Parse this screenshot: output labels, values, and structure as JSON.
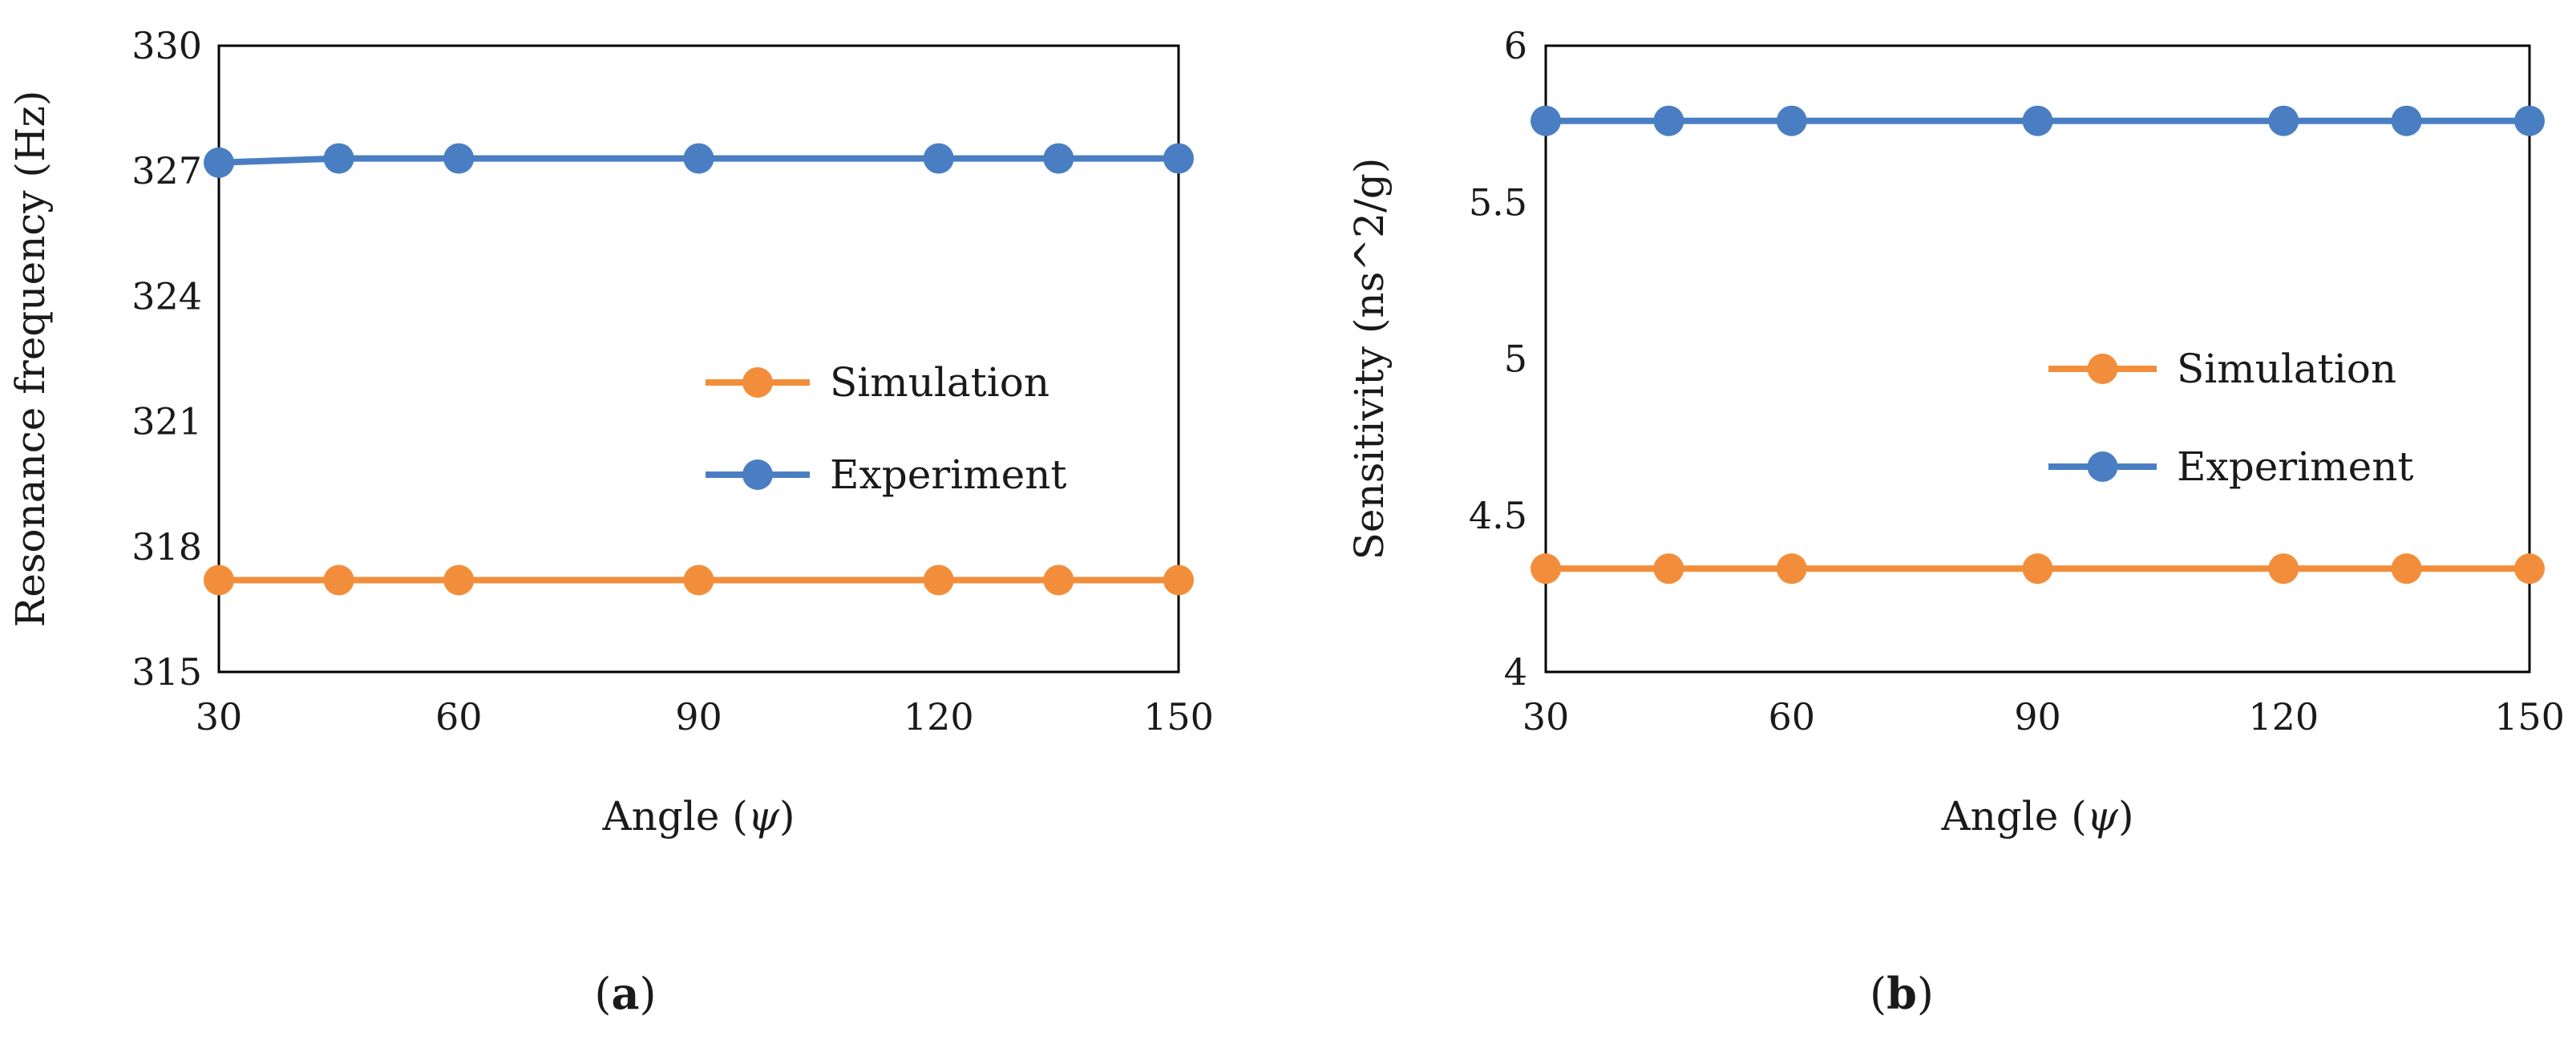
{
  "chart_data": [
    {
      "type": "line",
      "panel_label": "(a)",
      "panel_label_parts": [
        "(",
        "a",
        ")"
      ],
      "xlabel": "Angle (ψ)",
      "xlabel_parts": [
        "Angle (",
        "ψ",
        ")"
      ],
      "ylabel": "Resonance frequency (Hz)",
      "xlim": [
        30,
        150
      ],
      "ylim": [
        315,
        330
      ],
      "xticks": [
        30,
        60,
        90,
        120,
        150
      ],
      "yticks": [
        315,
        318,
        321,
        324,
        327,
        330
      ],
      "x": [
        30,
        45,
        60,
        90,
        120,
        135,
        150
      ],
      "grid": false,
      "legend_placement": "center-right",
      "series": [
        {
          "name": "Simulation",
          "color": "#F28E3B",
          "values": [
            317.2,
            317.2,
            317.2,
            317.2,
            317.2,
            317.2,
            317.2
          ]
        },
        {
          "name": "Experiment",
          "color": "#4A7EC2",
          "values": [
            327.2,
            327.3,
            327.3,
            327.3,
            327.3,
            327.3,
            327.3
          ]
        }
      ]
    },
    {
      "type": "line",
      "panel_label": "(b)",
      "panel_label_parts": [
        "(",
        "b",
        ")"
      ],
      "xlabel": "Angle (ψ)",
      "xlabel_parts": [
        "Angle (",
        "ψ",
        ")"
      ],
      "ylabel": "Sensitivity (ns^2/g)",
      "xlim": [
        30,
        150
      ],
      "ylim": [
        4,
        6
      ],
      "xticks": [
        30,
        60,
        90,
        120,
        150
      ],
      "yticks": [
        4,
        4.5,
        5,
        5.5,
        6
      ],
      "x": [
        30,
        45,
        60,
        90,
        120,
        135,
        150
      ],
      "grid": false,
      "legend_placement": "center-right",
      "series": [
        {
          "name": "Simulation",
          "color": "#F28E3B",
          "values": [
            4.33,
            4.33,
            4.33,
            4.33,
            4.33,
            4.33,
            4.33
          ]
        },
        {
          "name": "Experiment",
          "color": "#4A7EC2",
          "values": [
            5.76,
            5.76,
            5.76,
            5.76,
            5.76,
            5.76,
            5.76
          ]
        }
      ]
    }
  ]
}
